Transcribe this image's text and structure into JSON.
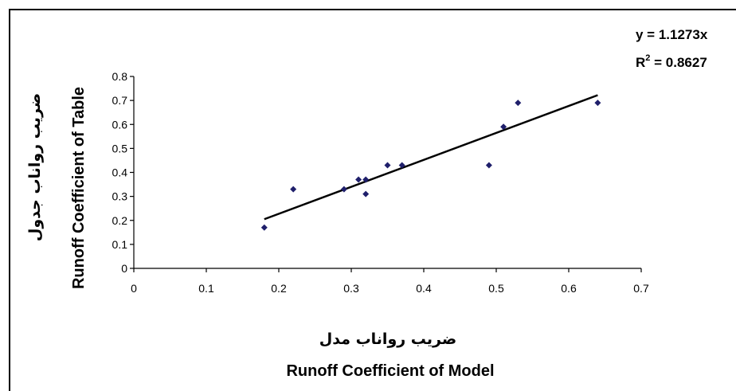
{
  "chart_data": {
    "type": "scatter",
    "title": "",
    "xlabel": "Runoff Coefficient of Model",
    "xlabel_fa": "ضریب رواناب مدل",
    "ylabel": "Runoff Coefficient of Table",
    "ylabel_fa": "ضریب رواناب جدول",
    "xlim": [
      0,
      0.7
    ],
    "ylim": [
      0,
      0.8
    ],
    "xticks": [
      "0",
      "0.1",
      "0.2",
      "0.3",
      "0.4",
      "0.5",
      "0.6",
      "0.7"
    ],
    "yticks": [
      "0",
      "0.1",
      "0.2",
      "0.3",
      "0.4",
      "0.5",
      "0.6",
      "0.7",
      "0.8"
    ],
    "grid": false,
    "marker_color": "#1f1f6b",
    "line_color": "#000000",
    "points": [
      {
        "x": 0.18,
        "y": 0.17
      },
      {
        "x": 0.22,
        "y": 0.33
      },
      {
        "x": 0.29,
        "y": 0.33
      },
      {
        "x": 0.31,
        "y": 0.37
      },
      {
        "x": 0.32,
        "y": 0.37
      },
      {
        "x": 0.32,
        "y": 0.31
      },
      {
        "x": 0.35,
        "y": 0.43
      },
      {
        "x": 0.37,
        "y": 0.43
      },
      {
        "x": 0.49,
        "y": 0.43
      },
      {
        "x": 0.51,
        "y": 0.59
      },
      {
        "x": 0.53,
        "y": 0.69
      },
      {
        "x": 0.64,
        "y": 0.69
      }
    ],
    "trendline": {
      "equation": "y = 1.1273x",
      "r2_prefix": "R",
      "r2_exp": "2",
      "r2_value": " = 0.8627",
      "segment": [
        {
          "x": 0.18,
          "y": 0.205
        },
        {
          "x": 0.64,
          "y": 0.722
        }
      ]
    }
  }
}
